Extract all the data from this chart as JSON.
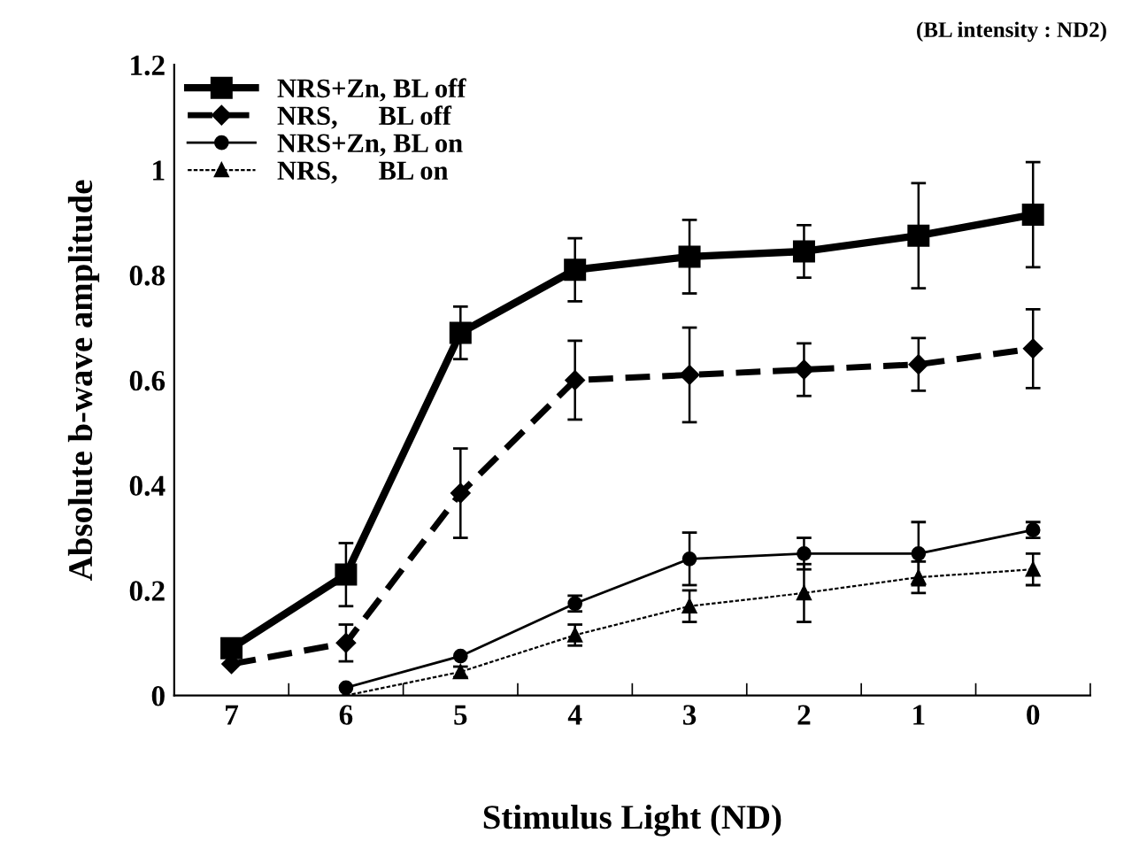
{
  "chart_data": {
    "type": "line",
    "xlabel": "Stimulus Light (ND)",
    "ylabel": "Absolute b-wave amplitude",
    "annotations": [
      "(BL intensity : ND2)"
    ],
    "categories": [
      "7",
      "6",
      "5",
      "4",
      "3",
      "2",
      "1",
      "0"
    ],
    "ylim": [
      0,
      1.2
    ],
    "yticks": [
      0,
      0.2,
      0.4,
      0.6,
      0.8,
      1,
      1.2
    ],
    "grid": false,
    "legend": "top left",
    "series": [
      {
        "name": "NRS+Zn, BL off",
        "color": "#000000",
        "marker": "square",
        "line_style": "solid",
        "values": [
          0.09,
          0.23,
          0.69,
          0.81,
          0.835,
          0.845,
          0.875,
          0.915
        ],
        "errors": [
          null,
          0.06,
          0.05,
          0.06,
          0.07,
          0.05,
          0.1,
          0.1
        ]
      },
      {
        "name": "NRS,      BL off",
        "color": "#000000",
        "marker": "diamond",
        "line_style": "dashed",
        "values": [
          0.06,
          0.1,
          0.385,
          0.6,
          0.61,
          0.62,
          0.63,
          0.66
        ],
        "errors": [
          null,
          0.035,
          0.085,
          0.075,
          0.09,
          0.05,
          0.05,
          0.075
        ]
      },
      {
        "name": "NRS+Zn, BL on",
        "color": "#000000",
        "marker": "circle",
        "line_style": "solid",
        "values": [
          null,
          0.015,
          0.075,
          0.175,
          0.26,
          0.27,
          0.27,
          0.315
        ],
        "errors": [
          null,
          null,
          null,
          0.015,
          0.05,
          0.03,
          0.06,
          0.015
        ]
      },
      {
        "name": "NRS,      BL on",
        "color": "#000000",
        "marker": "triangle",
        "line_style": "dotted",
        "values": [
          null,
          0.0,
          0.045,
          0.115,
          0.17,
          0.195,
          0.225,
          0.24
        ],
        "errors": [
          null,
          null,
          0.01,
          0.02,
          0.03,
          0.055,
          0.03,
          0.03
        ]
      }
    ]
  }
}
